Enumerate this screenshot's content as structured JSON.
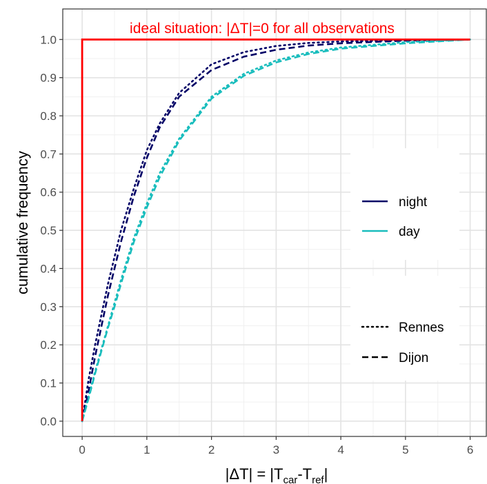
{
  "chart_data": {
    "type": "line",
    "annotation": "ideal situation: |ΔT|=0 for all observations",
    "xlabel": {
      "prefix": "|ΔT| = |T",
      "sub1": "car",
      "mid": "-T",
      "sub2": "ref",
      "suffix": "|"
    },
    "ylabel": "cumulative frequency",
    "xlim": [
      -0.3,
      6.25
    ],
    "ylim": [
      -0.04,
      1.08
    ],
    "x_ticks": [
      0,
      1,
      2,
      3,
      4,
      5,
      6
    ],
    "y_ticks": [
      0.0,
      0.1,
      0.2,
      0.3,
      0.4,
      0.5,
      0.6,
      0.7,
      0.8,
      0.9,
      1.0
    ],
    "y_tick_labels": [
      "0.0",
      "0.1",
      "0.2",
      "0.3",
      "0.4",
      "0.5",
      "0.6",
      "0.7",
      "0.8",
      "0.9",
      "1.0"
    ],
    "grid": true,
    "legend_color": {
      "position": "right",
      "entries": [
        {
          "label": "night",
          "color": "#000066"
        },
        {
          "label": "day",
          "color": "#19bdbd"
        }
      ]
    },
    "legend_linetype": {
      "position": "right",
      "entries": [
        {
          "label": "Rennes",
          "dash": "dotted"
        },
        {
          "label": "Dijon",
          "dash": "dashed"
        }
      ]
    },
    "ideal": {
      "color": "#ff0000",
      "x": [
        0,
        0,
        6
      ],
      "y": [
        0,
        1.0,
        1.0
      ]
    },
    "series": [
      {
        "name": "night · Rennes",
        "color": "#000066",
        "dash": "dotted",
        "x": [
          0,
          0.1,
          0.2,
          0.3,
          0.4,
          0.5,
          0.6,
          0.8,
          1.0,
          1.2,
          1.5,
          2.0,
          2.5,
          3.0,
          3.5,
          4.0,
          5.0,
          6.0
        ],
        "y": [
          0,
          0.11,
          0.2,
          0.28,
          0.36,
          0.43,
          0.5,
          0.61,
          0.71,
          0.78,
          0.86,
          0.935,
          0.967,
          0.983,
          0.991,
          0.995,
          0.998,
          1.0
        ]
      },
      {
        "name": "night · Dijon",
        "color": "#000066",
        "dash": "dashed",
        "x": [
          0,
          0.1,
          0.2,
          0.3,
          0.4,
          0.5,
          0.6,
          0.8,
          1.0,
          1.2,
          1.5,
          2.0,
          2.5,
          3.0,
          3.5,
          4.0,
          5.0,
          6.0
        ],
        "y": [
          0,
          0.08,
          0.17,
          0.25,
          0.33,
          0.4,
          0.47,
          0.59,
          0.69,
          0.77,
          0.85,
          0.92,
          0.955,
          0.973,
          0.984,
          0.99,
          0.997,
          1.0
        ]
      },
      {
        "name": "day · Rennes",
        "color": "#19bdbd",
        "dash": "dotted",
        "x": [
          0,
          0.1,
          0.2,
          0.3,
          0.4,
          0.5,
          0.6,
          0.8,
          1.0,
          1.2,
          1.5,
          2.0,
          2.5,
          3.0,
          3.5,
          4.0,
          5.0,
          6.0
        ],
        "y": [
          0,
          0.065,
          0.13,
          0.19,
          0.25,
          0.31,
          0.37,
          0.48,
          0.57,
          0.65,
          0.74,
          0.85,
          0.91,
          0.945,
          0.966,
          0.979,
          0.993,
          1.0
        ]
      },
      {
        "name": "day · Dijon",
        "color": "#19bdbd",
        "dash": "dashed",
        "x": [
          0,
          0.1,
          0.2,
          0.3,
          0.4,
          0.5,
          0.6,
          0.8,
          1.0,
          1.2,
          1.5,
          2.0,
          2.5,
          3.0,
          3.5,
          4.0,
          5.0,
          6.0
        ],
        "y": [
          0,
          0.06,
          0.125,
          0.185,
          0.245,
          0.3,
          0.36,
          0.47,
          0.56,
          0.64,
          0.735,
          0.845,
          0.905,
          0.94,
          0.962,
          0.976,
          0.99,
          1.0
        ]
      }
    ]
  }
}
